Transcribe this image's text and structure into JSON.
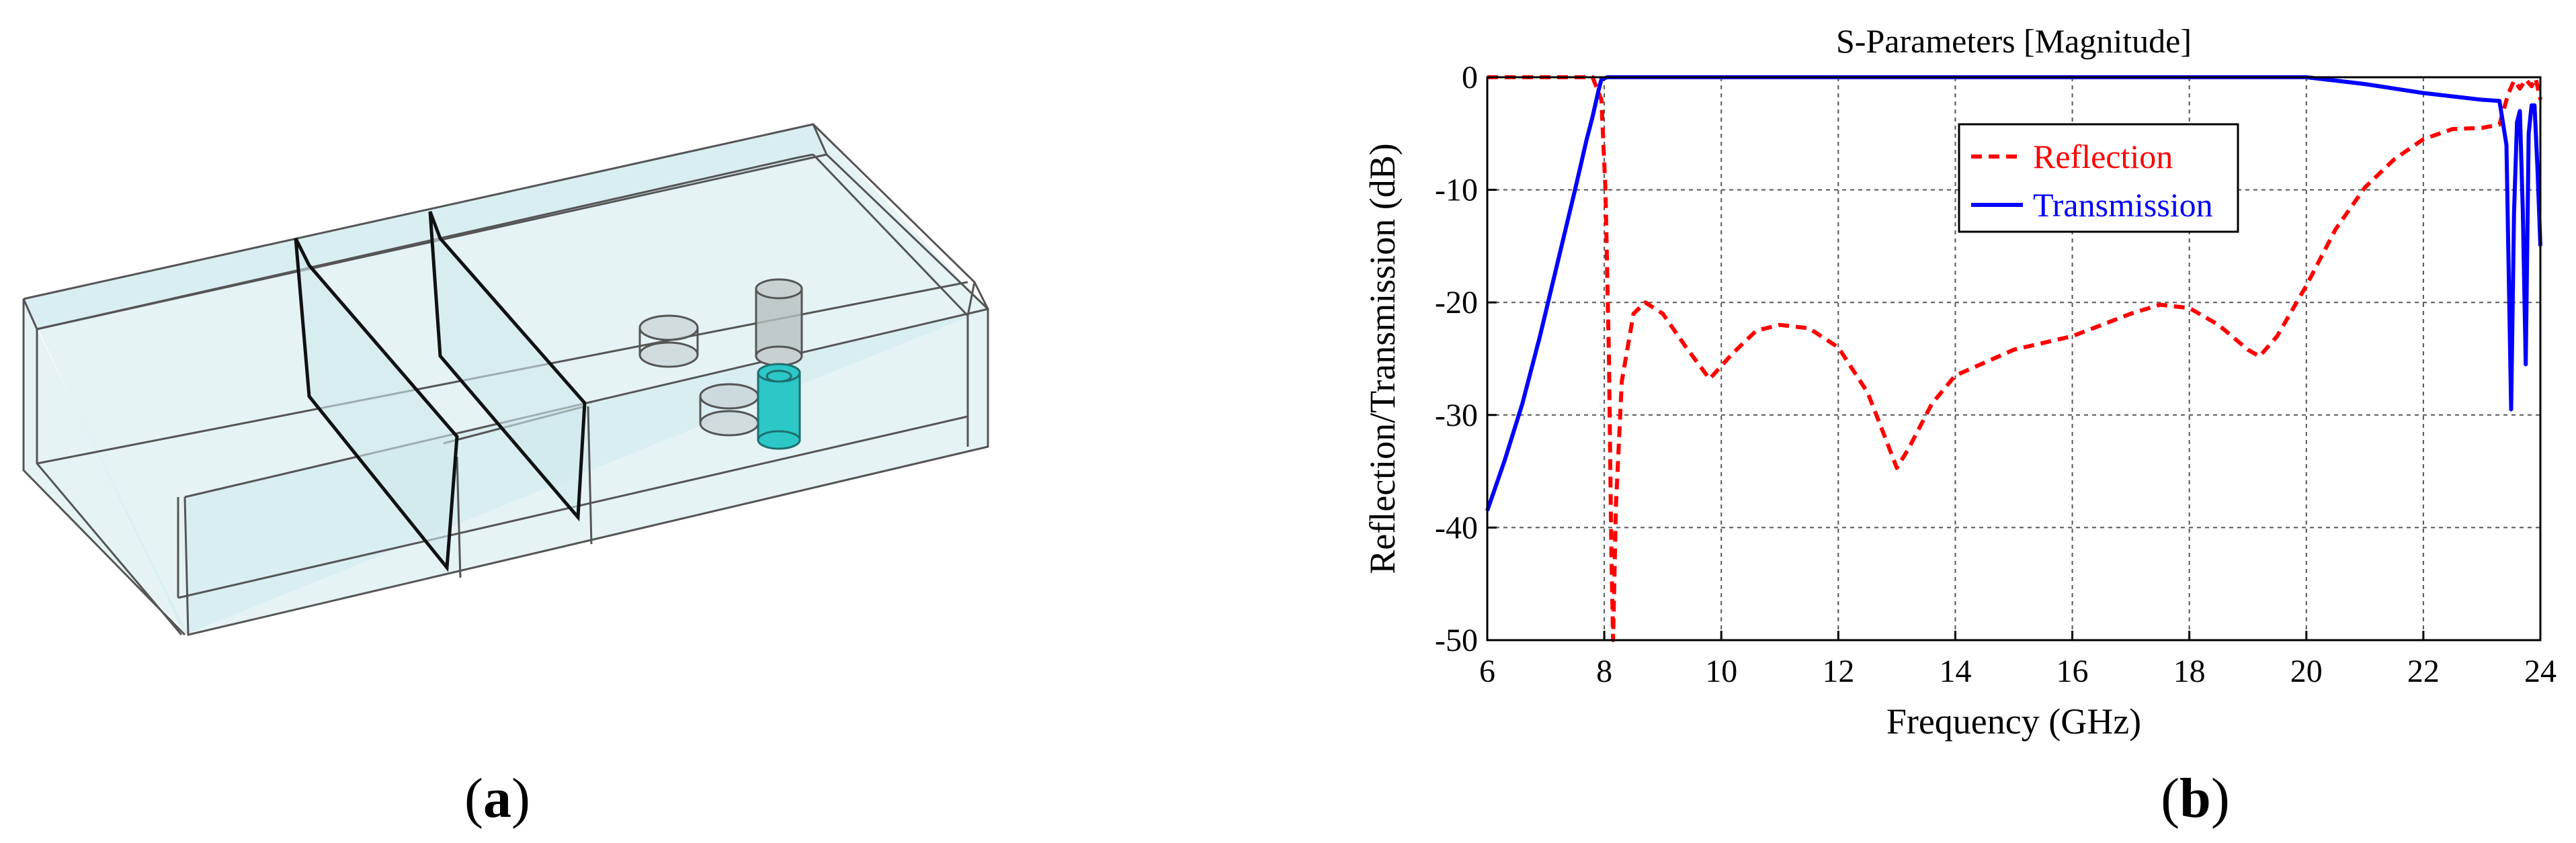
{
  "figure": {
    "panel_a_label": "(a)",
    "panel_a_label_letter": "a",
    "panel_b_label": "(b)",
    "panel_b_label_letter": "b"
  },
  "model": {
    "box_fill": "#cfe9ec",
    "edge_color": "#555555",
    "post_color": "#2cc7c7"
  },
  "chart_data": {
    "type": "line",
    "title": "S-Parameters [Magnitude]",
    "xlabel": "Frequency (GHz)",
    "ylabel": "Reflection/Transmission (dB)",
    "xlim": [
      6,
      24
    ],
    "ylim": [
      -50,
      0
    ],
    "xticks": [
      6,
      8,
      10,
      12,
      14,
      16,
      18,
      20,
      22,
      24
    ],
    "yticks": [
      0,
      -10,
      -20,
      -30,
      -40,
      -50
    ],
    "grid": true,
    "legend_position": "top-center",
    "series": [
      {
        "name": "Reflection",
        "color": "#ff0000",
        "style": "dashed",
        "x": [
          6,
          7,
          7.8,
          7.95,
          8.02,
          8.08,
          8.12,
          8.15,
          8.2,
          8.3,
          8.5,
          8.7,
          9.0,
          9.4,
          9.8,
          10.2,
          10.6,
          11.0,
          11.5,
          12.0,
          12.5,
          12.8,
          13.0,
          13.2,
          13.6,
          14.0,
          15.0,
          16.0,
          17.0,
          17.5,
          18.0,
          18.5,
          19.0,
          19.2,
          19.5,
          20.0,
          20.5,
          21.0,
          21.5,
          22.0,
          22.5,
          23.0,
          23.3,
          23.45,
          23.55,
          23.65,
          23.75,
          23.85,
          23.92,
          24.0
        ],
        "values": [
          0,
          0,
          0,
          -2,
          -10,
          -25,
          -42,
          -50,
          -38,
          -27,
          -21,
          -20,
          -21,
          -24,
          -26.8,
          -24.5,
          -22.5,
          -22,
          -22.3,
          -24,
          -28,
          -32,
          -34.7,
          -33,
          -29,
          -26.5,
          -24.2,
          -23,
          -21,
          -20.2,
          -20.5,
          -22,
          -24.2,
          -24.8,
          -23,
          -18.5,
          -13.5,
          -9.8,
          -7.3,
          -5.5,
          -4.6,
          -4.5,
          -4.2,
          -1.5,
          -0.3,
          -1,
          -0.2,
          -0.8,
          -0.1,
          -2
        ]
      },
      {
        "name": "Transmission",
        "color": "#0000ff",
        "style": "solid",
        "x": [
          6,
          6.3,
          6.6,
          6.9,
          7.2,
          7.5,
          7.7,
          7.8,
          7.9,
          7.95,
          8.05,
          8.5,
          10,
          12,
          14,
          16,
          18,
          20,
          20.5,
          21,
          21.5,
          22,
          22.5,
          23,
          23.3,
          23.42,
          23.5,
          23.55,
          23.6,
          23.65,
          23.7,
          23.75,
          23.8,
          23.85,
          23.9,
          23.95,
          24.0
        ],
        "values": [
          -38.5,
          -34,
          -29,
          -23,
          -16.5,
          -10,
          -5.5,
          -3.5,
          -1.2,
          -0.2,
          0,
          0,
          0,
          0,
          0,
          0,
          0,
          0,
          -0.3,
          -0.6,
          -1,
          -1.4,
          -1.7,
          -2,
          -2.1,
          -6,
          -29.5,
          -12,
          -4,
          -3,
          -12,
          -25.5,
          -5,
          -2.5,
          -2.5,
          -8,
          -15
        ]
      }
    ]
  }
}
